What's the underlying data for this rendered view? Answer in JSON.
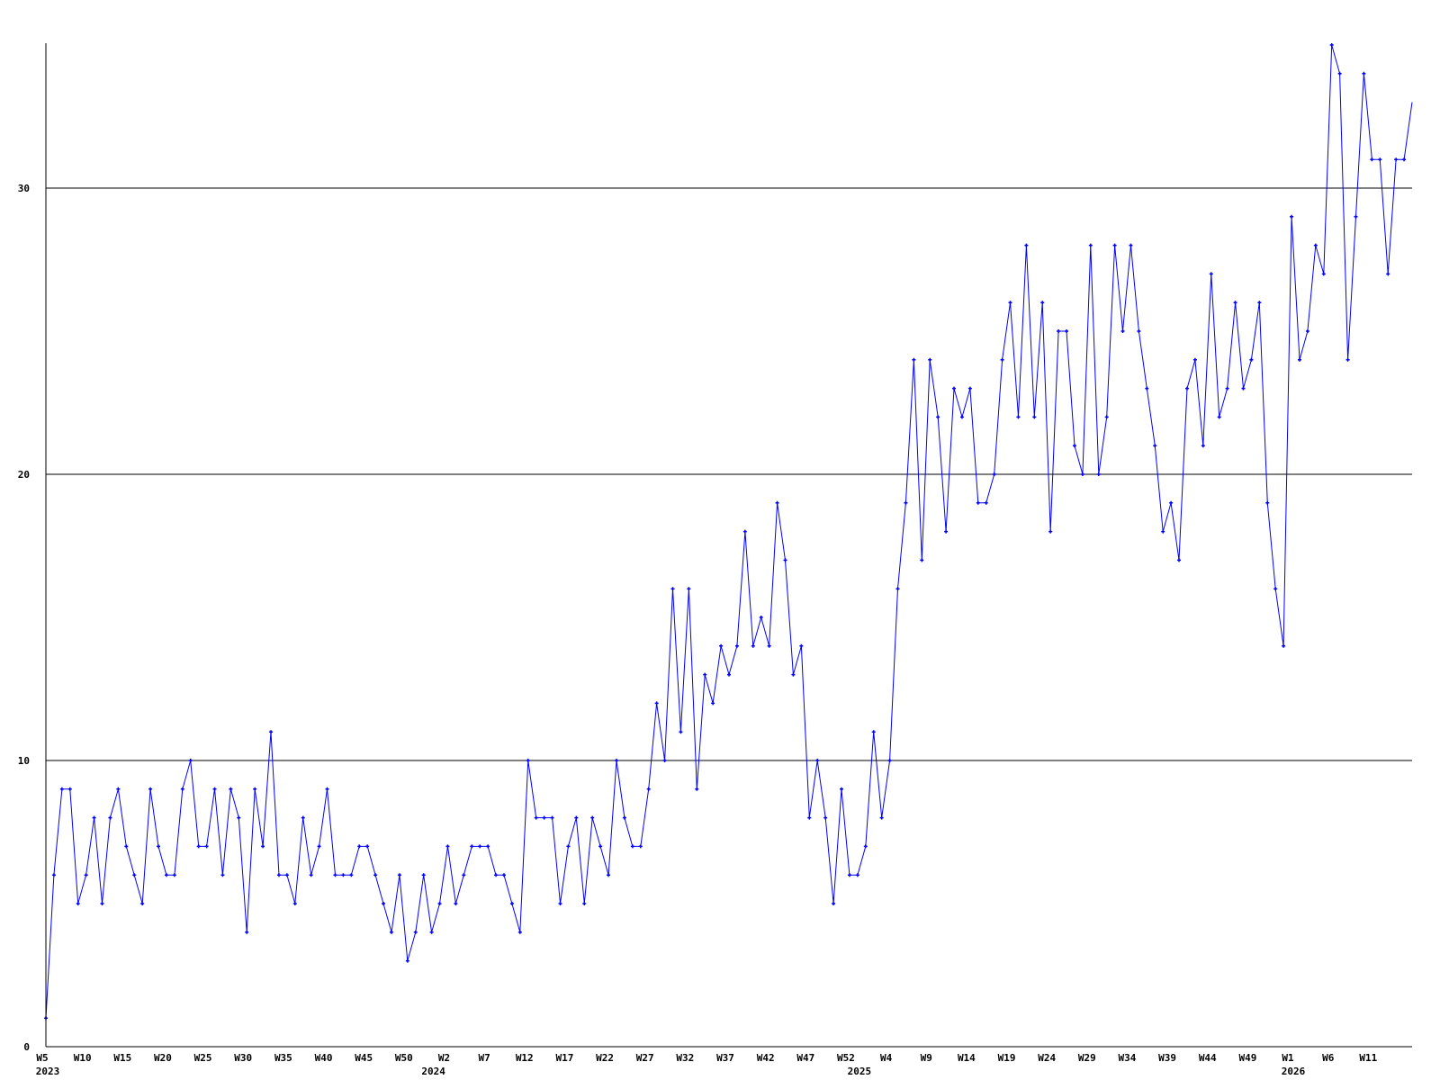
{
  "chart_data": {
    "type": "line",
    "title": "",
    "xlabel": "",
    "ylabel": "",
    "ylim": [
      0,
      35
    ],
    "yticks": [
      0,
      10,
      20,
      30
    ],
    "grid": "horizontal",
    "colors": {
      "series": "#0000ff",
      "grid": "#000000",
      "axis": "#000000"
    },
    "xticks": [
      {
        "label": "W5",
        "index": 0
      },
      {
        "label": "W10",
        "index": 5
      },
      {
        "label": "W15",
        "index": 10
      },
      {
        "label": "W20",
        "index": 15
      },
      {
        "label": "W25",
        "index": 20
      },
      {
        "label": "W30",
        "index": 25
      },
      {
        "label": "W35",
        "index": 30
      },
      {
        "label": "W40",
        "index": 35
      },
      {
        "label": "W45",
        "index": 40
      },
      {
        "label": "W50",
        "index": 45
      },
      {
        "label": "W2",
        "index": 50
      },
      {
        "label": "W7",
        "index": 55
      },
      {
        "label": "W12",
        "index": 60
      },
      {
        "label": "W17",
        "index": 65
      },
      {
        "label": "W22",
        "index": 70
      },
      {
        "label": "W27",
        "index": 75
      },
      {
        "label": "W32",
        "index": 80
      },
      {
        "label": "W37",
        "index": 85
      },
      {
        "label": "W42",
        "index": 90
      },
      {
        "label": "W47",
        "index": 95
      },
      {
        "label": "W52",
        "index": 100
      },
      {
        "label": "W4",
        "index": 105
      },
      {
        "label": "W9",
        "index": 110
      },
      {
        "label": "W14",
        "index": 115
      },
      {
        "label": "W19",
        "index": 120
      },
      {
        "label": "W24",
        "index": 125
      },
      {
        "label": "W29",
        "index": 130
      },
      {
        "label": "W34",
        "index": 135
      },
      {
        "label": "W39",
        "index": 140
      },
      {
        "label": "W44",
        "index": 145
      },
      {
        "label": "W49",
        "index": 150
      },
      {
        "label": "W1",
        "index": 155
      },
      {
        "label": "W6",
        "index": 160
      },
      {
        "label": "W11",
        "index": 165
      }
    ],
    "year_labels": [
      {
        "label": "2023",
        "index": 0
      },
      {
        "label": "2024",
        "index": 48
      },
      {
        "label": "2025",
        "index": 101
      },
      {
        "label": "2026",
        "index": 155
      }
    ],
    "series": [
      {
        "values": [
          1,
          6,
          9,
          9,
          5,
          6,
          8,
          5,
          8,
          9,
          7,
          6,
          5,
          9,
          7,
          6,
          6,
          9,
          10,
          7,
          7,
          9,
          6,
          9,
          8,
          4,
          9,
          7,
          11,
          6,
          6,
          5,
          8,
          6,
          7,
          9,
          6,
          6,
          6,
          7,
          7,
          6,
          5,
          4,
          6,
          3,
          4,
          6,
          4,
          5,
          7,
          5,
          6,
          7,
          7,
          7,
          6,
          6,
          5,
          4,
          10,
          8,
          8,
          8,
          5,
          7,
          8,
          5,
          8,
          7,
          6,
          10,
          8,
          7,
          7,
          9,
          12,
          10,
          16,
          11,
          16,
          9,
          13,
          12,
          14,
          13,
          14,
          18,
          14,
          15,
          14,
          19,
          17,
          13,
          14,
          8,
          10,
          8,
          5,
          9,
          6,
          6,
          7,
          11,
          8,
          10,
          16,
          19,
          24,
          17,
          24,
          22,
          18,
          23,
          22,
          23,
          19,
          19,
          20,
          24,
          26,
          22,
          28,
          22,
          26,
          18,
          25,
          25,
          21,
          20,
          28,
          20,
          22,
          28,
          25,
          28,
          25,
          23,
          21,
          18,
          19,
          17,
          23,
          24,
          21,
          27,
          22,
          23,
          26,
          23,
          24,
          26,
          19,
          16,
          14,
          29,
          24,
          25,
          28,
          27,
          35,
          34,
          24,
          29,
          34,
          31,
          31,
          27,
          31,
          31,
          33
        ]
      }
    ]
  }
}
